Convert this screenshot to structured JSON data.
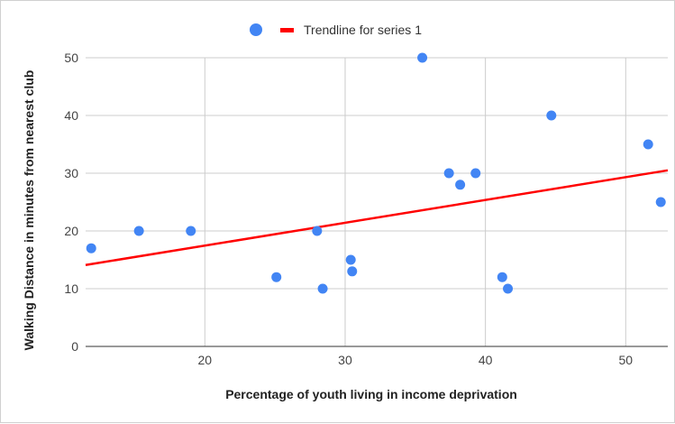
{
  "chart_data": {
    "type": "scatter",
    "title": "",
    "xlabel": "Percentage of youth living in income deprivation",
    "ylabel": "Walking Distance in minutes from nearest club",
    "xlim": [
      11.5,
      53
    ],
    "ylim": [
      0,
      50
    ],
    "x_ticks": [
      20,
      30,
      40,
      50
    ],
    "y_ticks": [
      0,
      10,
      20,
      30,
      40,
      50
    ],
    "grid": true,
    "legend_position": "top",
    "series": [
      {
        "type": "scatter",
        "color": "#4285f4",
        "points": [
          {
            "x": 11.9,
            "y": 17
          },
          {
            "x": 15.3,
            "y": 20
          },
          {
            "x": 19.0,
            "y": 20
          },
          {
            "x": 25.1,
            "y": 12
          },
          {
            "x": 28.0,
            "y": 20
          },
          {
            "x": 28.4,
            "y": 10
          },
          {
            "x": 30.4,
            "y": 15
          },
          {
            "x": 30.5,
            "y": 13
          },
          {
            "x": 35.5,
            "y": 50
          },
          {
            "x": 37.4,
            "y": 30
          },
          {
            "x": 38.2,
            "y": 28
          },
          {
            "x": 39.3,
            "y": 30
          },
          {
            "x": 41.2,
            "y": 12
          },
          {
            "x": 41.6,
            "y": 10
          },
          {
            "x": 44.7,
            "y": 40
          },
          {
            "x": 51.6,
            "y": 35
          },
          {
            "x": 52.5,
            "y": 25
          }
        ]
      },
      {
        "type": "trendline",
        "name": "Trendline for series 1",
        "color": "#ff0000",
        "line": [
          {
            "x": 11.5,
            "y": 14.1
          },
          {
            "x": 53,
            "y": 30.5
          }
        ]
      }
    ]
  }
}
